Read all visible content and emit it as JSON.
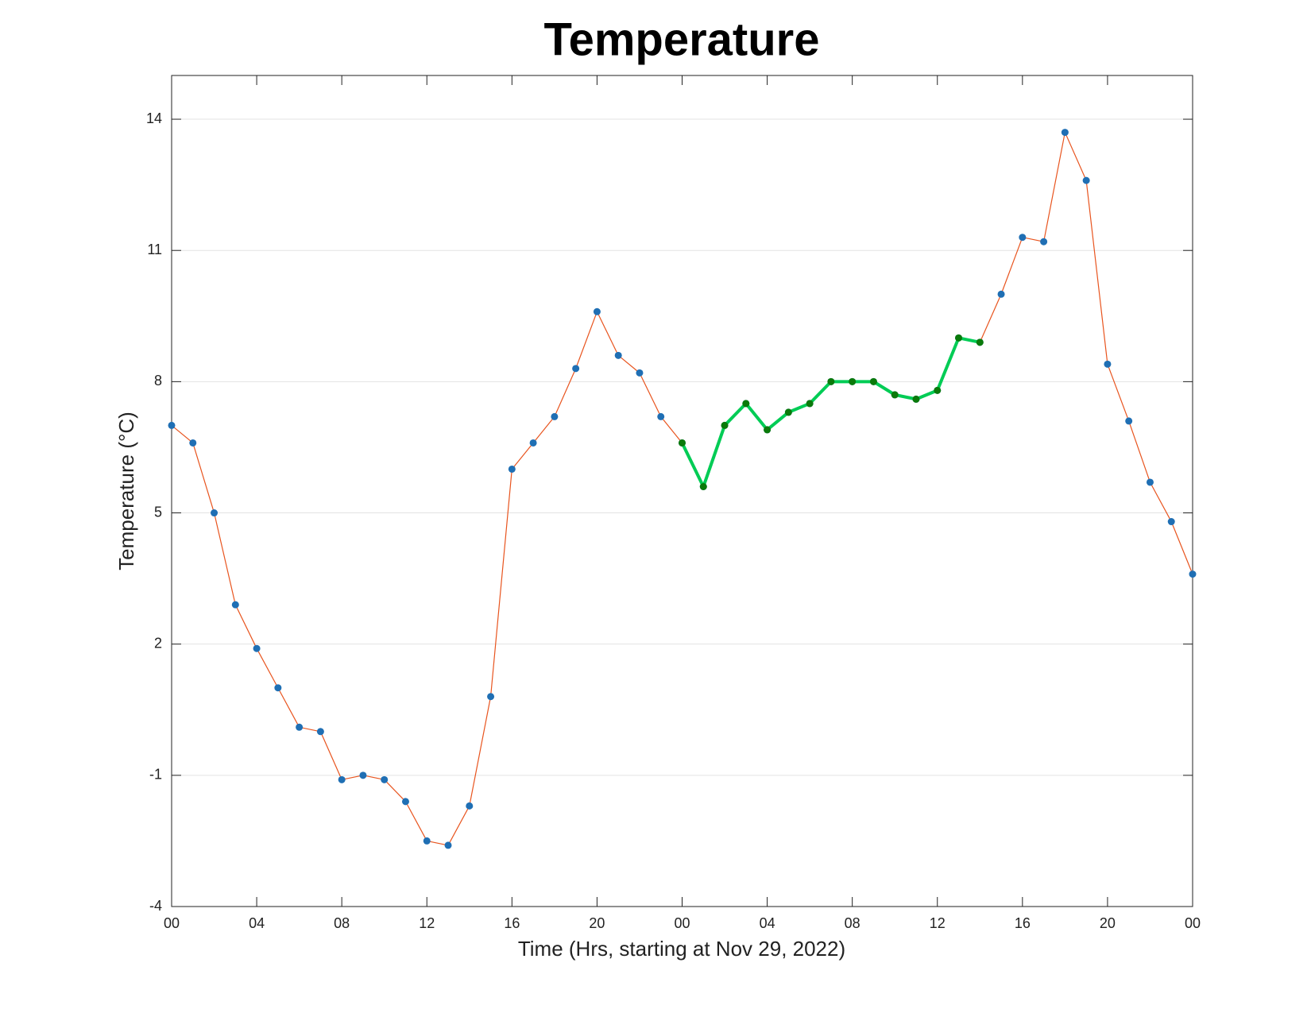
{
  "chart_data": {
    "type": "line",
    "title": "Temperature",
    "x_label": "Time (Hrs, starting at Nov 29, 2022)",
    "y_label": "Temperature (°C)",
    "categories": [
      "00",
      null,
      null,
      null,
      "04",
      null,
      null,
      null,
      "08",
      null,
      null,
      null,
      "12",
      null,
      null,
      null,
      "16",
      null,
      null,
      null,
      "20",
      null,
      null,
      null,
      "00",
      null,
      null,
      null,
      "04",
      null,
      null,
      null,
      "08",
      null,
      null,
      null,
      "12",
      null,
      null,
      null,
      "16",
      null,
      null,
      null,
      "20",
      null,
      null,
      null,
      "00"
    ],
    "series": [
      {
        "color": "#e8541e",
        "marker_color": "#1f6fb4",
        "line_width": 1.2,
        "values": [
          7.0,
          6.6,
          5.0,
          2.9,
          1.9,
          1.0,
          0.1,
          0.0,
          -1.1,
          -1.0,
          -1.1,
          -1.6,
          -2.5,
          -2.6,
          -1.7,
          0.8,
          6.0,
          6.6,
          7.2,
          8.3,
          9.6,
          8.6,
          8.2,
          7.2,
          6.6,
          5.6,
          7.0,
          7.5,
          6.9,
          7.3,
          7.5,
          8.0,
          8.0,
          8.0,
          7.7,
          7.6,
          7.8,
          9.0,
          8.9,
          10.0,
          11.3,
          11.2,
          13.7,
          12.6,
          8.4,
          7.1,
          5.7,
          4.8,
          3.6
        ]
      },
      {
        "color": "#00cc55",
        "marker_color": "#0a7a0a",
        "line_width": 4,
        "values": [
          null,
          null,
          null,
          null,
          null,
          null,
          null,
          null,
          null,
          null,
          null,
          null,
          null,
          null,
          null,
          null,
          null,
          null,
          null,
          null,
          null,
          null,
          null,
          null,
          6.6,
          5.6,
          7.0,
          7.5,
          6.9,
          7.3,
          7.5,
          8.0,
          8.0,
          8.0,
          7.7,
          7.6,
          7.8,
          9.0,
          8.9,
          null,
          null,
          null,
          null,
          null,
          null,
          null,
          null,
          null,
          null
        ]
      }
    ],
    "ylim": [
      -4,
      15
    ],
    "yticks": [
      -4,
      -1,
      2,
      5,
      8,
      11,
      14
    ],
    "grid": true
  }
}
